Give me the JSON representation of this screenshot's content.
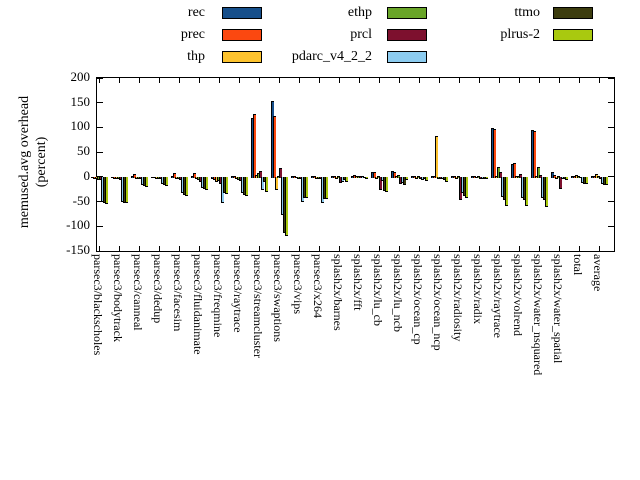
{
  "y_axis": {
    "label_line1": "memused.avg overhead",
    "label_line2": "(percent)",
    "ticks": [
      200,
      150,
      100,
      50,
      0,
      -50,
      -100,
      -150
    ]
  },
  "legend": [
    {
      "label": "rec",
      "color": "#164f8b"
    },
    {
      "label": "prec",
      "color": "#fb4810"
    },
    {
      "label": "thp",
      "color": "#fdc32e"
    },
    {
      "label": "ethp",
      "color": "#69a528"
    },
    {
      "label": "prcl",
      "color": "#7d102e"
    },
    {
      "label": "pdarc_v4_2_2",
      "color": "#8cccf0"
    },
    {
      "label": "ttmo",
      "color": "#3c3c0e"
    },
    {
      "label": "plrus-2",
      "color": "#a9c90f"
    }
  ],
  "chart_data": {
    "type": "bar",
    "title": "",
    "xlabel": "",
    "ylabel": "memused.avg overhead (percent)",
    "ylim": [
      -150,
      200
    ],
    "grid": false,
    "legend_position": "top",
    "categories": [
      "parsec3/blackscholes",
      "parsec3/bodytrack",
      "parsec3/canneal",
      "parsec3/dedup",
      "parsec3/facesim",
      "parsec3/fluidanimate",
      "parsec3/freqmine",
      "parsec3/raytrace",
      "parsec3/streamcluster",
      "parsec3/swaptions",
      "parsec3/vips",
      "parsec3/x264",
      "splash2x/barnes",
      "splash2x/fft",
      "splash2x/lu_cb",
      "splash2x/lu_ncb",
      "splash2x/ocean_cp",
      "splash2x/ocean_ncp",
      "splash2x/radiosity",
      "splash2x/radix",
      "splash2x/raytrace",
      "splash2x/volrend",
      "splash2x/water_nsquared",
      "splash2x/water_spatial",
      "total",
      "average"
    ],
    "series": [
      {
        "name": "rec",
        "color": "#164f8b",
        "values": [
          -1,
          -1,
          2,
          -1,
          2,
          2,
          -3,
          1,
          120,
          153,
          1,
          1,
          1,
          1,
          10,
          12,
          1,
          2,
          2,
          1,
          99,
          26,
          94,
          9,
          1,
          1
        ]
      },
      {
        "name": "prec",
        "color": "#fb4810",
        "values": [
          -2,
          -2,
          5,
          -1,
          7,
          7,
          -4,
          2,
          127,
          123,
          1,
          1,
          2,
          4,
          10,
          10,
          1,
          2,
          2,
          1,
          97,
          28,
          92,
          3,
          1,
          2
        ]
      },
      {
        "name": "thp",
        "color": "#fdc32e",
        "values": [
          -3,
          -3,
          -2,
          -2,
          -2,
          -2,
          -8,
          -3,
          3,
          -25,
          -1,
          -2,
          -2,
          2,
          -3,
          2,
          -2,
          82,
          -3,
          -1,
          2,
          2,
          2,
          -2,
          4,
          5
        ]
      },
      {
        "name": "ethp",
        "color": "#69a528",
        "values": [
          -4,
          -3,
          -2,
          -2,
          -3,
          -4,
          -6,
          -4,
          8,
          2,
          -2,
          -2,
          1,
          1,
          2,
          3,
          1,
          -3,
          2,
          1,
          19,
          2,
          19,
          2,
          1,
          1
        ]
      },
      {
        "name": "prcl",
        "color": "#7d102e",
        "values": [
          -5,
          -4,
          -3,
          -3,
          -5,
          -8,
          -12,
          -6,
          12,
          17,
          -2,
          -3,
          -10,
          1,
          -25,
          -12,
          -2,
          -2,
          -44,
          -2,
          10,
          5,
          3,
          -22,
          -1,
          -2
        ]
      },
      {
        "name": "pdarc_v4_2_2",
        "color": "#8cccf0",
        "values": [
          -48,
          -49,
          -15,
          -13,
          -30,
          -20,
          -50,
          -30,
          -24,
          -75,
          -48,
          -50,
          -9,
          2,
          -6,
          -10,
          -5,
          -3,
          -31,
          -2,
          -38,
          -40,
          -41,
          -3,
          -10,
          -13
        ]
      },
      {
        "name": "ttmo",
        "color": "#3c3c0e",
        "values": [
          -50,
          -50,
          -17,
          -14,
          -35,
          -22,
          -30,
          -34,
          -8,
          -112,
          -40,
          -42,
          -4,
          -1,
          -27,
          -14,
          -3,
          -4,
          -37,
          -2,
          -44,
          -45,
          -45,
          -3,
          -12,
          -15
        ]
      },
      {
        "name": "plrus-2",
        "color": "#a9c90f",
        "values": [
          -52,
          -51,
          -19,
          -16,
          -37,
          -25,
          -32,
          -36,
          -29,
          -117,
          -41,
          -43,
          -8,
          -2,
          -29,
          -5,
          -7,
          -8,
          -41,
          -3,
          -56,
          -56,
          -58,
          -5,
          -13,
          -15
        ]
      }
    ]
  }
}
